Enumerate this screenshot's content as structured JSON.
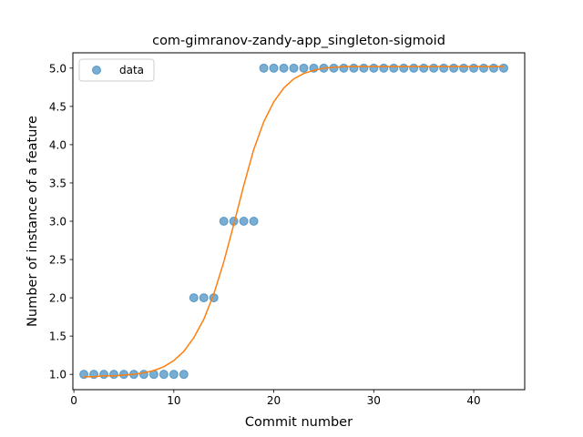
{
  "chart_data": {
    "type": "scatter",
    "title": "com-gimranov-zandy-app_singleton-sigmoid",
    "xlabel": "Commit number",
    "ylabel": "Number of instance of a feature",
    "xlim": [
      -0.1,
      45.1
    ],
    "ylim": [
      0.8,
      5.2
    ],
    "x_ticks": [
      0,
      10,
      20,
      30,
      40
    ],
    "x_tick_labels": [
      "0",
      "10",
      "20",
      "30",
      "40"
    ],
    "y_ticks": [
      1.0,
      1.5,
      2.0,
      2.5,
      3.0,
      3.5,
      4.0,
      4.5,
      5.0
    ],
    "y_tick_labels": [
      "1.0",
      "1.5",
      "2.0",
      "2.5",
      "3.0",
      "3.5",
      "4.0",
      "4.5",
      "5.0"
    ],
    "grid": false,
    "legend": {
      "position": "top-left",
      "entries": [
        "data"
      ]
    },
    "series": [
      {
        "name": "data",
        "kind": "points",
        "color": "#1f77b4",
        "x": [
          1,
          2,
          3,
          4,
          5,
          6,
          7,
          8,
          9,
          10,
          11,
          12,
          13,
          14,
          15,
          16,
          17,
          18,
          19,
          20,
          21,
          22,
          23,
          24,
          25,
          26,
          27,
          28,
          29,
          30,
          31,
          32,
          33,
          34,
          35,
          36,
          37,
          38,
          39,
          40,
          41,
          42,
          43
        ],
        "y": [
          1,
          1,
          1,
          1,
          1,
          1,
          1,
          1,
          1,
          1,
          1,
          2,
          2,
          2,
          3,
          3,
          3,
          3,
          5,
          5,
          5,
          5,
          5,
          5,
          5,
          5,
          5,
          5,
          5,
          5,
          5,
          5,
          5,
          5,
          5,
          5,
          5,
          5,
          5,
          5,
          5,
          5,
          5
        ]
      },
      {
        "kind": "line",
        "color": "#ff7f0e",
        "x": [
          1,
          2,
          3,
          4,
          5,
          6,
          7,
          8,
          9,
          10,
          11,
          12,
          13,
          14,
          15,
          16,
          17,
          18,
          19,
          20,
          21,
          22,
          23,
          24,
          25,
          26,
          27,
          28,
          29,
          30,
          31,
          32,
          33,
          34,
          35,
          36,
          37,
          38,
          39,
          40,
          41,
          42,
          43
        ],
        "y": [
          0.97,
          0.97,
          0.98,
          0.98,
          0.99,
          1.0,
          1.02,
          1.05,
          1.1,
          1.18,
          1.3,
          1.48,
          1.72,
          2.05,
          2.47,
          2.96,
          3.47,
          3.94,
          4.3,
          4.56,
          4.74,
          4.86,
          4.93,
          4.97,
          5.0,
          5.01,
          5.02,
          5.02,
          5.02,
          5.02,
          5.02,
          5.02,
          5.02,
          5.02,
          5.02,
          5.02,
          5.02,
          5.02,
          5.02,
          5.02,
          5.02,
          5.02,
          5.02
        ]
      }
    ]
  }
}
